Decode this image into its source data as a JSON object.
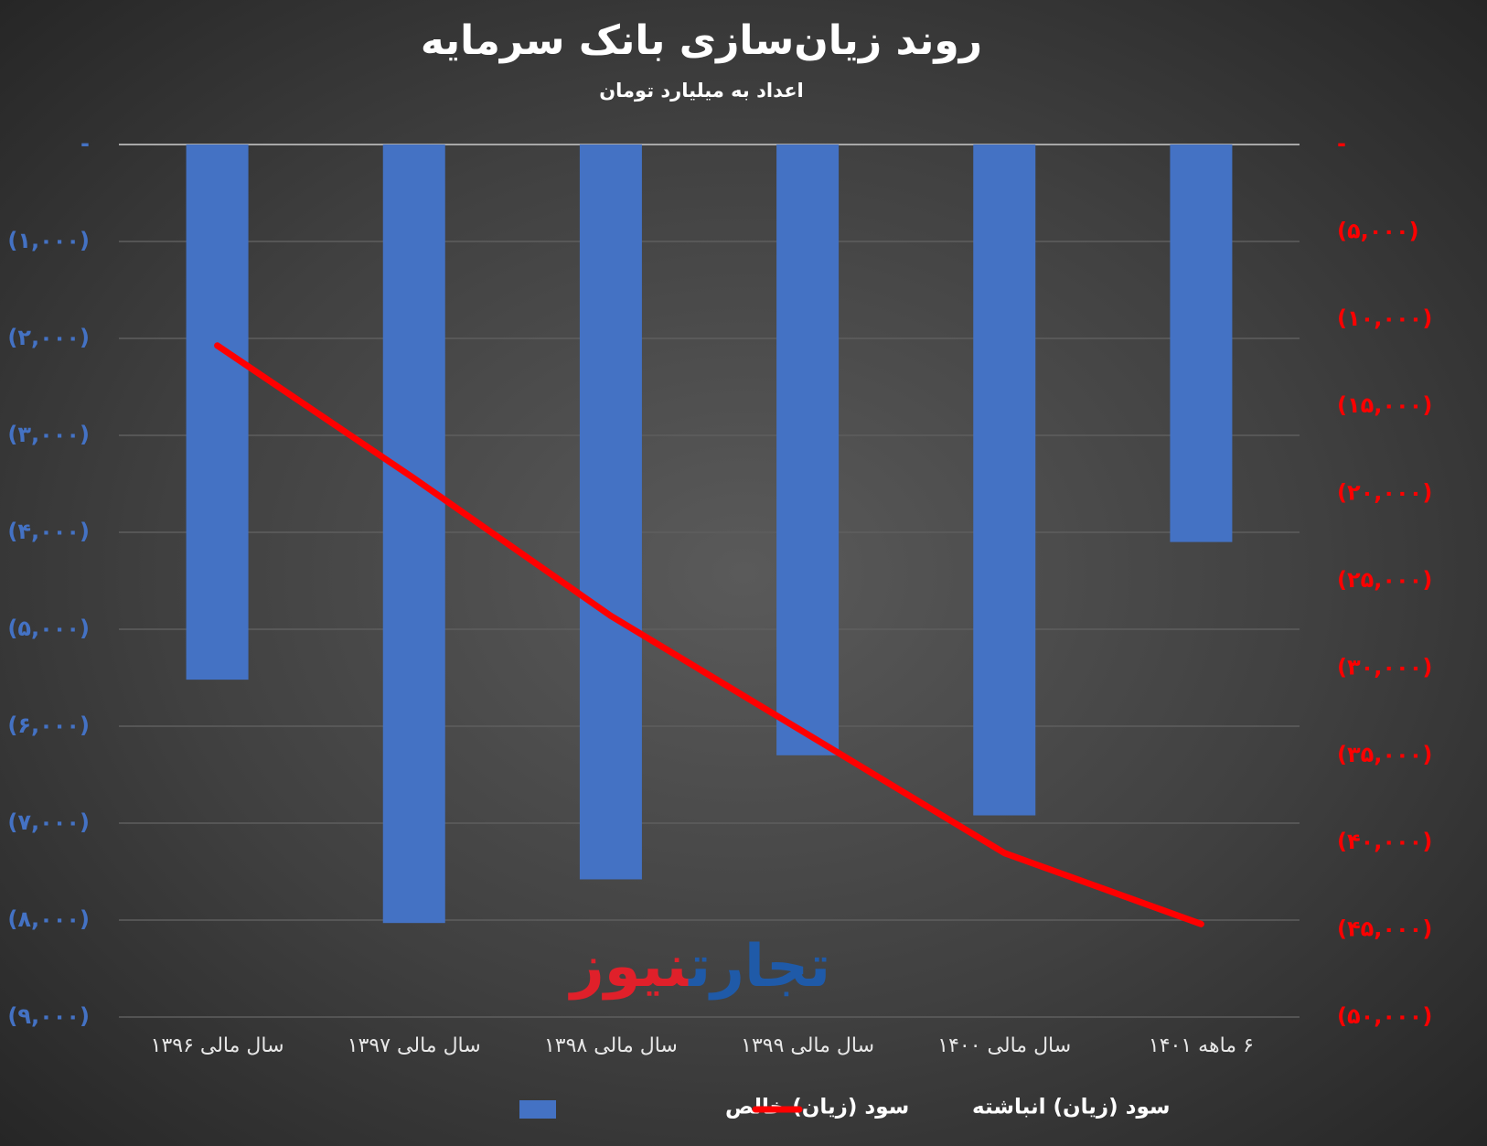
{
  "chart_data": {
    "type": "bar",
    "title": "روند زیان‌سازی بانک سرمایه",
    "subtitle": "اعداد به میلیارد تومان",
    "watermark": [
      "تجارت",
      "نیوز"
    ],
    "categories": [
      "سال مالی ۱۳۹۶",
      "سال مالی ۱۳۹۷",
      "سال مالی ۱۳۹۸",
      "سال مالی ۱۳۹۹",
      "سال مالی ۱۴۰۰",
      "۶ ماهه ۱۴۰۱"
    ],
    "series": [
      {
        "name": "سود (زیان) خالص",
        "color": "#4472c4",
        "type": "bar",
        "values": [
          -5520,
          -8030,
          -7580,
          -6300,
          -6920,
          -4100
        ]
      },
      {
        "name": "سود (زیان) انباشته",
        "color": "#ff0000",
        "type": "line",
        "axis": "y2",
        "values": [
          -11520,
          -19130,
          -27010,
          -33800,
          -40600,
          -44670
        ]
      }
    ],
    "ylim": [
      -9000,
      0
    ],
    "yticks": [
      {
        "value": 0,
        "label": "-"
      },
      {
        "value": -1000,
        "label": "(۱,۰۰۰)"
      },
      {
        "value": -2000,
        "label": "(۲,۰۰۰)"
      },
      {
        "value": -3000,
        "label": "(۳,۰۰۰)"
      },
      {
        "value": -4000,
        "label": "(۴,۰۰۰)"
      },
      {
        "value": -5000,
        "label": "(۵,۰۰۰)"
      },
      {
        "value": -6000,
        "label": "(۶,۰۰۰)"
      },
      {
        "value": -7000,
        "label": "(۷,۰۰۰)"
      },
      {
        "value": -8000,
        "label": "(۸,۰۰۰)"
      },
      {
        "value": -9000,
        "label": "(۹,۰۰۰)"
      }
    ],
    "y2lim": [
      -50000,
      0
    ],
    "y2ticks": [
      {
        "value": 0,
        "label": "-"
      },
      {
        "value": -5000,
        "label": "(۵,۰۰۰)"
      },
      {
        "value": -10000,
        "label": "(۱۰,۰۰۰)"
      },
      {
        "value": -15000,
        "label": "(۱۵,۰۰۰)"
      },
      {
        "value": -20000,
        "label": "(۲۰,۰۰۰)"
      },
      {
        "value": -25000,
        "label": "(۲۵,۰۰۰)"
      },
      {
        "value": -30000,
        "label": "(۳۰,۰۰۰)"
      },
      {
        "value": -35000,
        "label": "(۳۵,۰۰۰)"
      },
      {
        "value": -40000,
        "label": "(۴۰,۰۰۰)"
      },
      {
        "value": -45000,
        "label": "(۴۵,۰۰۰)"
      },
      {
        "value": -50000,
        "label": "(۵۰,۰۰۰)"
      }
    ],
    "grid": true
  }
}
